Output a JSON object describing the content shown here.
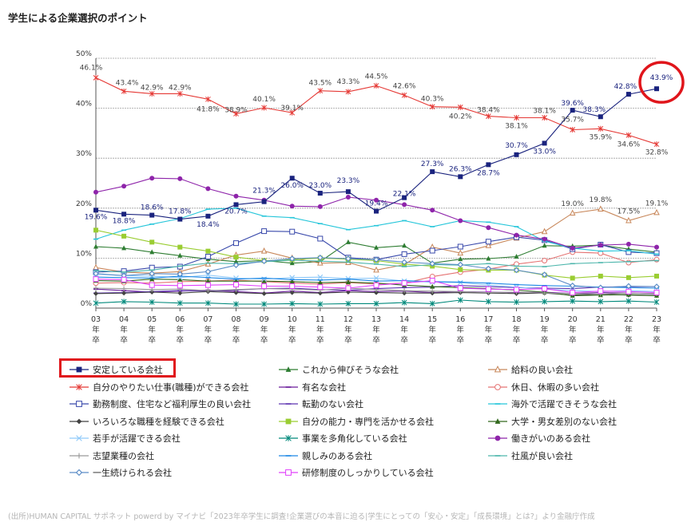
{
  "page": {
    "title": "学生による企業選択のポイント",
    "source": "(出所)HUMAN CAPITAL サポネット powerd by マイナビ「2023年卒学生に調査!企業選びの本音に迫る|学生にとっての「安心・安定」「成長環境」とは?」より金融庁作成"
  },
  "chart_data": {
    "type": "line",
    "title": "学生による企業選択のポイント",
    "xlabel": "",
    "ylabel": "",
    "ylim": [
      0,
      50
    ],
    "yticks": [
      "0%",
      "10%",
      "20%",
      "30%",
      "40%",
      "50%"
    ],
    "grid": true,
    "x": [
      "03年卒",
      "04年卒",
      "05年卒",
      "06年卒",
      "07年卒",
      "08年卒",
      "09年卒",
      "10年卒",
      "11年卒",
      "12年卒",
      "13年卒",
      "14年卒",
      "15年卒",
      "16年卒",
      "17年卒",
      "18年卒",
      "19年卒",
      "20年卒",
      "21年卒",
      "22年卒",
      "23年卒"
    ],
    "highlight_series": "安定している会社",
    "series": [
      {
        "name": "安定している会社",
        "color": "#1a237e",
        "marker": "square-filled",
        "values": [
          19.6,
          18.8,
          18.6,
          17.8,
          18.4,
          20.7,
          21.3,
          26.0,
          23.0,
          23.3,
          19.4,
          22.1,
          27.3,
          26.3,
          28.7,
          30.7,
          33.0,
          39.6,
          38.3,
          42.8,
          43.9
        ],
        "labels": [
          "19.6%",
          "18.8%",
          "18.6%",
          "17.8%",
          "18.4%",
          "20.7%",
          "21.3%",
          "26.0%",
          "23.0%",
          "23.3%",
          "19.4%",
          "22.1%",
          "27.3%",
          "26.3%",
          "28.7%",
          "30.7%",
          "33.0%",
          "39.6%",
          "38.3%",
          "42.8%",
          "43.9%"
        ]
      },
      {
        "name": "これから伸びそうな会社",
        "color": "#2e7d32",
        "marker": "triangle-filled",
        "values": [
          12.3,
          12.0,
          11.2,
          10.5,
          9.8,
          9.3,
          9.5,
          9.0,
          9.3,
          13.2,
          12.1,
          12.5,
          9.0,
          9.8,
          9.9,
          10.3,
          12.5,
          12.4,
          12.6,
          11.8,
          11.2
        ]
      },
      {
        "name": "給料の良い会社",
        "color": "#c8875a",
        "marker": "triangle-open",
        "values": [
          8.1,
          7.2,
          7.0,
          7.3,
          8.8,
          10.6,
          11.4,
          10.0,
          9.0,
          9.1,
          7.6,
          8.7,
          12.2,
          11.0,
          12.5,
          14.0,
          15.3,
          19.0,
          19.8,
          17.5,
          19.1
        ],
        "labels": [
          "",
          "",
          "",
          "",
          "",
          "",
          "",
          "",
          "",
          "",
          "",
          "",
          "",
          "",
          "",
          "",
          "",
          "19.0%",
          "19.8%",
          "17.5%",
          "19.1%"
        ]
      },
      {
        "name": "自分のやりたい仕事(職種)ができる会社",
        "color": "#e53935",
        "marker": "asterisk",
        "values": [
          46.1,
          43.4,
          42.9,
          42.9,
          41.8,
          38.9,
          40.1,
          39.1,
          43.5,
          43.3,
          44.5,
          42.6,
          40.3,
          40.2,
          38.4,
          38.1,
          38.1,
          35.7,
          35.9,
          34.6,
          32.8
        ],
        "labels": [
          "46.1%",
          "43.4%",
          "42.9%",
          "42.9%",
          "41.8%",
          "38.9%",
          "40.1%",
          "39.1%",
          "43.5%",
          "43.3%",
          "44.5%",
          "42.6%",
          "40.3%",
          "40.2%",
          "38.4%",
          "38.1%",
          "38.1%",
          "35.7%",
          "35.9%",
          "34.6%",
          "32.8%"
        ]
      },
      {
        "name": "有名な会社",
        "color": "#6a1b9a",
        "marker": "dash",
        "values": [
          3.8,
          3.5,
          3.2,
          3.4,
          3.6,
          3.3,
          3.0,
          3.4,
          3.1,
          3.5,
          3.3,
          3.4,
          3.1,
          3.3,
          3.2,
          3.1,
          3.2,
          2.9,
          3.1,
          3.0,
          2.8
        ]
      },
      {
        "name": "休日、休暇の多い会社",
        "color": "#e57373",
        "marker": "circle-open",
        "values": [
          5.0,
          5.1,
          5.0,
          5.3,
          5.4,
          5.6,
          5.3,
          5.0,
          4.8,
          5.1,
          4.8,
          5.0,
          6.3,
          7.2,
          7.8,
          8.8,
          9.5,
          11.2,
          11.0,
          9.1,
          9.7
        ]
      },
      {
        "name": "勤務制度、住宅など福利厚生の良い会社",
        "color": "#3949ab",
        "marker": "square-open",
        "values": [
          7.2,
          7.4,
          8.1,
          8.3,
          10.3,
          13.0,
          15.4,
          15.3,
          13.9,
          10.1,
          9.7,
          10.8,
          11.5,
          12.3,
          13.3,
          14.2,
          13.6,
          11.8,
          12.7,
          11.2,
          11.0
        ]
      },
      {
        "name": "転勤のない会社",
        "color": "#5e35b1",
        "marker": "dash",
        "values": [
          3.0,
          3.1,
          3.3,
          3.5,
          3.4,
          3.6,
          3.9,
          4.0,
          3.7,
          3.6,
          3.9,
          4.1,
          4.2,
          4.5,
          4.3,
          4.1,
          4.0,
          3.9,
          4.2,
          4.3,
          4.3
        ]
      },
      {
        "name": "海外で活躍できそうな会社",
        "color": "#26c6da",
        "marker": "dash",
        "values": [
          13.8,
          15.6,
          16.8,
          17.9,
          19.8,
          20.0,
          18.4,
          18.1,
          16.9,
          15.7,
          16.5,
          17.5,
          16.3,
          17.5,
          17.2,
          16.3,
          13.4,
          12.0,
          11.4,
          11.5,
          10.8
        ]
      },
      {
        "name": "いろいろな職種を経験できる会社",
        "color": "#424242",
        "marker": "diamond-filled",
        "values": [
          2.9,
          3.0,
          3.2,
          3.0,
          3.3,
          3.1,
          2.9,
          3.1,
          3.0,
          3.2,
          3.1,
          3.0,
          3.0,
          3.1,
          3.0,
          2.9,
          3.0,
          2.6,
          2.8,
          2.6,
          2.5
        ]
      },
      {
        "name": "自分の能力・専門を活かせる会社",
        "color": "#9acd32",
        "marker": "square-filled",
        "values": [
          15.6,
          14.4,
          13.2,
          12.2,
          11.4,
          10.2,
          9.5,
          9.7,
          10.0,
          9.8,
          9.5,
          8.8,
          8.4,
          7.7,
          7.6,
          7.6,
          6.6,
          6.0,
          6.4,
          6.1,
          6.4
        ]
      },
      {
        "name": "大学・男女差別のない会社",
        "color": "#33691e",
        "marker": "triangle-filled",
        "values": [
          5.5,
          5.4,
          5.8,
          5.7,
          5.4,
          5.4,
          5.4,
          5.3,
          5.1,
          5.2,
          5.0,
          4.6,
          4.3,
          4.1,
          3.9,
          3.6,
          3.2,
          2.5,
          2.6,
          2.7,
          2.5
        ]
      },
      {
        "name": "若手が活躍できる会社",
        "color": "#90caf9",
        "marker": "x",
        "values": [
          6.8,
          6.5,
          6.4,
          6.1,
          6.6,
          6.0,
          5.8,
          6.1,
          6.2,
          5.9,
          6.0,
          5.4,
          5.2,
          5.1,
          4.6,
          4.2,
          3.8,
          3.5,
          3.3,
          3.5,
          3.3
        ]
      },
      {
        "name": "事業を多角化している会社",
        "color": "#00897b",
        "marker": "asterisk",
        "values": [
          1.0,
          1.3,
          1.2,
          1.0,
          1.0,
          0.8,
          0.8,
          0.9,
          0.8,
          0.9,
          0.9,
          1.1,
          0.9,
          1.6,
          1.3,
          1.2,
          1.3,
          1.4,
          1.3,
          1.4,
          1.2
        ]
      },
      {
        "name": "働きがいのある会社",
        "color": "#8e24aa",
        "marker": "circle-filled",
        "values": [
          23.2,
          24.4,
          26.0,
          25.9,
          23.9,
          22.4,
          21.6,
          20.4,
          20.3,
          22.2,
          21.6,
          20.7,
          19.6,
          17.5,
          16.1,
          14.6,
          13.8,
          12.0,
          12.6,
          12.8,
          12.2
        ]
      },
      {
        "name": "志望業種の会社",
        "color": "#999999",
        "marker": "plus",
        "values": [
          4.0,
          3.9,
          3.7,
          3.8,
          3.5,
          3.7,
          3.9,
          3.8,
          3.6,
          4.0,
          3.7,
          3.5,
          3.4,
          3.3,
          3.1,
          3.2,
          3.0,
          2.9,
          2.8,
          3.0,
          2.9
        ]
      },
      {
        "name": "親しみのある会社",
        "color": "#1e88e5",
        "marker": "dash",
        "values": [
          6.2,
          6.1,
          6.0,
          6.4,
          6.1,
          5.8,
          6.0,
          5.7,
          5.6,
          5.8,
          5.4,
          5.5,
          5.3,
          5.2,
          5.0,
          4.7,
          4.5,
          4.4,
          4.2,
          4.1,
          4.0
        ]
      },
      {
        "name": "社風が良い会社",
        "color": "#4db6ac",
        "marker": "dash",
        "values": [
          7.5,
          7.2,
          7.6,
          8.4,
          9.0,
          8.9,
          9.3,
          9.6,
          9.4,
          9.2,
          8.8,
          8.3,
          8.7,
          8.6,
          8.9,
          8.4,
          8.3,
          8.9,
          9.1,
          9.3,
          9.5
        ]
      },
      {
        "name": "一生続けられる会社",
        "color": "#5c8dc7",
        "marker": "diamond-open",
        "values": [
          6.9,
          6.5,
          6.9,
          6.8,
          7.3,
          8.6,
          9.4,
          9.9,
          10.1,
          9.9,
          9.7,
          9.2,
          8.9,
          8.7,
          7.9,
          7.6,
          6.7,
          4.5,
          4.1,
          4.4,
          4.3
        ]
      },
      {
        "name": "研修制度のしっかりしている会社",
        "color": "#e040fb",
        "marker": "square-open",
        "values": [
          5.8,
          5.7,
          4.6,
          4.5,
          4.6,
          4.7,
          4.4,
          4.4,
          4.2,
          4.0,
          4.6,
          5.0,
          5.5,
          4.0,
          3.8,
          3.7,
          3.9,
          3.1,
          3.4,
          3.3,
          3.1
        ]
      }
    ],
    "legend": {
      "placement": "bottom",
      "entries": [
        "安定している会社",
        "これから伸びそうな会社",
        "給料の良い会社",
        "自分のやりたい仕事(職種)ができる会社",
        "有名な会社",
        "休日、休暇の多い会社",
        "勤務制度、住宅など福利厚生の良い会社",
        "転勤のない会社",
        "海外で活躍できそうな会社",
        "いろいろな職種を経験できる会社",
        "自分の能力・専門を活かせる会社",
        "大学・男女差別のない会社",
        "若手が活躍できる会社",
        "事業を多角化している会社",
        "働きがいのある会社",
        "志望業種の会社",
        "親しみのある会社",
        "社風が良い会社",
        "一生続けられる会社",
        "研修制度のしっかりしている会社"
      ]
    },
    "annotations": [
      "red box around legend entry 安定している会社",
      "red circle around 23年卒 value 43.9%"
    ]
  },
  "colors": {
    "highlight": "#e0151b",
    "grid": "#9e9e9e",
    "axis": "#555555"
  }
}
